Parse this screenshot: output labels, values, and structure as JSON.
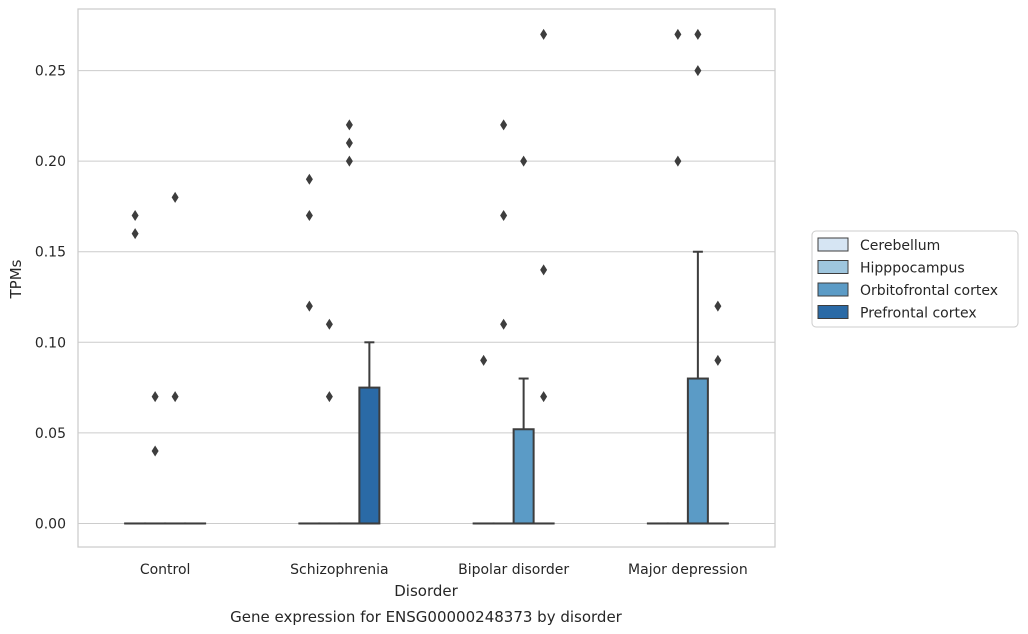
{
  "chart_data": {
    "type": "box",
    "caption": "Gene expression for ENSG00000248373 by disorder",
    "xlabel": "Disorder",
    "ylabel": "TPMs",
    "ylim": [
      -0.013,
      0.284
    ],
    "yticks": [
      0.0,
      0.05,
      0.1,
      0.15,
      0.2,
      0.25
    ],
    "ytick_labels": [
      "0.00",
      "0.05",
      "0.10",
      "0.15",
      "0.20",
      "0.25"
    ],
    "grid": "horizontal",
    "legend_position": "right",
    "categories": [
      "Control",
      "Schizophrenia",
      "Bipolar disorder",
      "Major depression"
    ],
    "series": [
      {
        "name": "Cerebellum",
        "color": "#d6e5f3",
        "boxes": [
          {
            "category": "Control",
            "q1": 0,
            "median": 0,
            "q3": 0,
            "whisker_low": 0,
            "whisker_high": 0,
            "outliers": [
              0.17,
              0.16
            ]
          },
          {
            "category": "Schizophrenia",
            "q1": 0,
            "median": 0,
            "q3": 0,
            "whisker_low": 0,
            "whisker_high": 0,
            "outliers": [
              0.19,
              0.17,
              0.12
            ]
          },
          {
            "category": "Bipolar disorder",
            "q1": 0,
            "median": 0,
            "q3": 0,
            "whisker_low": 0,
            "whisker_high": 0,
            "outliers": [
              0.09
            ]
          },
          {
            "category": "Major depression",
            "q1": 0,
            "median": 0,
            "q3": 0,
            "whisker_low": 0,
            "whisker_high": 0,
            "outliers": []
          }
        ]
      },
      {
        "name": "Hipppocampus",
        "color": "#9ec6de",
        "boxes": [
          {
            "category": "Control",
            "q1": 0,
            "median": 0,
            "q3": 0,
            "whisker_low": 0,
            "whisker_high": 0,
            "outliers": [
              0.07,
              0.04
            ]
          },
          {
            "category": "Schizophrenia",
            "q1": 0,
            "median": 0,
            "q3": 0,
            "whisker_low": 0,
            "whisker_high": 0,
            "outliers": [
              0.11,
              0.07
            ]
          },
          {
            "category": "Bipolar disorder",
            "q1": 0,
            "median": 0,
            "q3": 0,
            "whisker_low": 0,
            "whisker_high": 0,
            "outliers": [
              0.22,
              0.17,
              0.11
            ]
          },
          {
            "category": "Major depression",
            "q1": 0,
            "median": 0,
            "q3": 0,
            "whisker_low": 0,
            "whisker_high": 0,
            "outliers": [
              0.27,
              0.2
            ]
          }
        ]
      },
      {
        "name": "Orbitofrontal cortex",
        "color": "#5b9bc6",
        "boxes": [
          {
            "category": "Control",
            "q1": 0,
            "median": 0,
            "q3": 0,
            "whisker_low": 0,
            "whisker_high": 0,
            "outliers": [
              0.18,
              0.07
            ]
          },
          {
            "category": "Schizophrenia",
            "q1": 0,
            "median": 0,
            "q3": 0,
            "whisker_low": 0,
            "whisker_high": 0,
            "outliers": [
              0.22,
              0.21,
              0.2
            ]
          },
          {
            "category": "Bipolar disorder",
            "q1": 0,
            "median": 0,
            "q3": 0.052,
            "whisker_low": 0,
            "whisker_high": 0.08,
            "outliers": [
              0.2
            ]
          },
          {
            "category": "Major depression",
            "q1": 0,
            "median": 0,
            "q3": 0.08,
            "whisker_low": 0,
            "whisker_high": 0.15,
            "outliers": [
              0.27,
              0.25
            ]
          }
        ]
      },
      {
        "name": "Prefrontal cortex",
        "color": "#2a6aa6",
        "boxes": [
          {
            "category": "Control",
            "q1": 0,
            "median": 0,
            "q3": 0,
            "whisker_low": 0,
            "whisker_high": 0,
            "outliers": []
          },
          {
            "category": "Schizophrenia",
            "q1": 0,
            "median": 0,
            "q3": 0.075,
            "whisker_low": 0,
            "whisker_high": 0.1,
            "outliers": []
          },
          {
            "category": "Bipolar disorder",
            "q1": 0,
            "median": 0,
            "q3": 0,
            "whisker_low": 0,
            "whisker_high": 0,
            "outliers": [
              0.27,
              0.14,
              0.07
            ]
          },
          {
            "category": "Major depression",
            "q1": 0,
            "median": 0,
            "q3": 0,
            "whisker_low": 0,
            "whisker_high": 0,
            "outliers": [
              0.12,
              0.09
            ]
          }
        ]
      }
    ]
  }
}
